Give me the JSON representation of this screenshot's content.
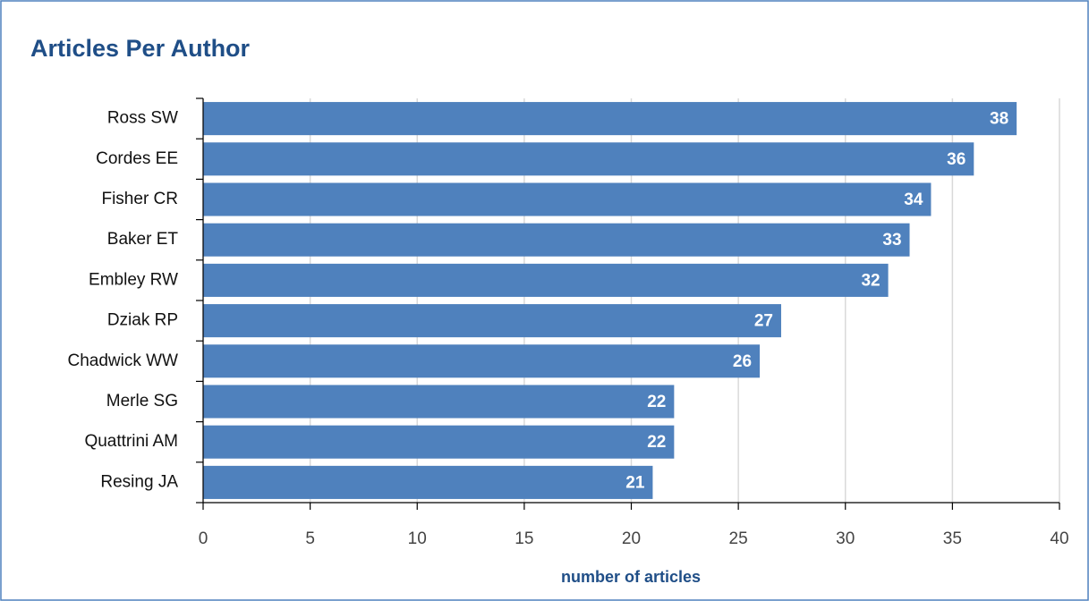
{
  "chart_data": {
    "type": "bar",
    "orientation": "horizontal",
    "title": "Articles Per Author",
    "x_label": "number of articles",
    "categories": [
      "Ross SW",
      "Cordes EE",
      "Fisher CR",
      "Baker ET",
      "Embley RW",
      "Dziak RP",
      "Chadwick WW",
      "Merle SG",
      "Quattrini AM",
      "Resing JA"
    ],
    "values": [
      38,
      36,
      34,
      33,
      32,
      27,
      26,
      22,
      22,
      21
    ],
    "color": "#4f81bd",
    "xlim": [
      0,
      40
    ],
    "xticks": [
      0,
      5,
      10,
      15,
      20,
      25,
      30,
      35,
      40
    ],
    "grid": true
  }
}
